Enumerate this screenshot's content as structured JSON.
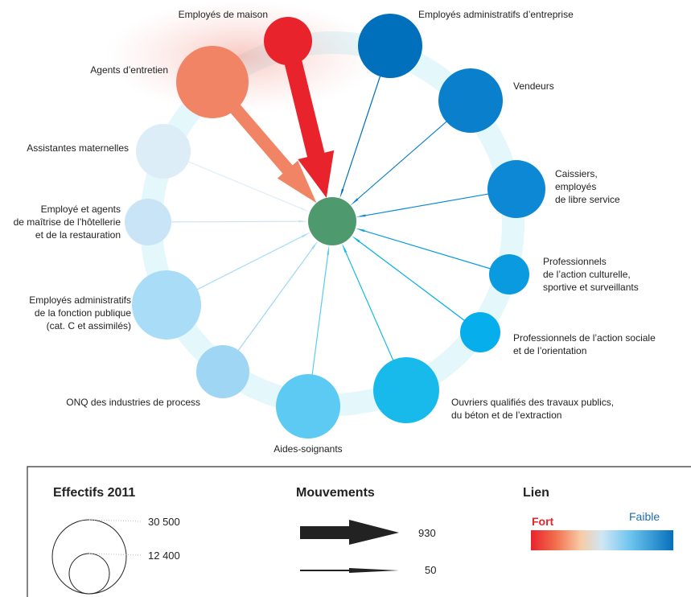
{
  "diagram": {
    "center_color": "#4e9a6e",
    "nodes": [
      {
        "id": "employes-maison",
        "lines": [
          "Employés de maison"
        ],
        "color": "#e8232b",
        "size": 0.45,
        "flow": 0.55
      },
      {
        "id": "employes-admin-entreprise",
        "lines": [
          "Employés administratifs d’entreprise"
        ],
        "color": "#0070bc",
        "size": 0.85,
        "flow": 0.02
      },
      {
        "id": "vendeurs",
        "lines": [
          "Vendeurs"
        ],
        "color": "#0a7fcc",
        "size": 0.9,
        "flow": 0.02
      },
      {
        "id": "caissiers",
        "lines": [
          "Caissiers,",
          "employés",
          "de libre  service"
        ],
        "color": "#0c88d4",
        "size": 0.65,
        "flow": 0.02
      },
      {
        "id": "pro-action-culturelle",
        "lines": [
          "Professionnels",
          "de l’action culturelle,",
          "sportive et surveillants"
        ],
        "color": "#0a9ae0",
        "size": 0.3,
        "flow": 0.02
      },
      {
        "id": "pro-action-sociale",
        "lines": [
          "Professionnels de l’action sociale",
          "et de l’orientation"
        ],
        "color": "#07aeec",
        "size": 0.3,
        "flow": 0.02
      },
      {
        "id": "ouvriers-tp",
        "lines": [
          "Ouvriers qualifiés des travaux publics,",
          "du béton et de l’extraction"
        ],
        "color": "#17baea",
        "size": 0.9,
        "flow": 0.03
      },
      {
        "id": "aides-soignants",
        "lines": [
          "Aides-soignants"
        ],
        "color": "#5ccaf2",
        "size": 0.8,
        "flow": 0.03
      },
      {
        "id": "onq-process",
        "lines": [
          "ONQ des industries de process"
        ],
        "color": "#9ed6f3",
        "size": 0.5,
        "flow": 0.02
      },
      {
        "id": "employes-fonction-publique",
        "lines": [
          "Employés administratifs",
          "de la fonction publique",
          "(cat. C et assimilés)"
        ],
        "color": "#a8dcf7",
        "size": 1.0,
        "flow": 0.02
      },
      {
        "id": "employe-hotellerie",
        "lines": [
          "Employé et agents",
          "de maîtrise de l’hôtellerie",
          "et de la restauration"
        ],
        "color": "#c8e4f6",
        "size": 0.35,
        "flow": 0.02
      },
      {
        "id": "assistantes-maternelles",
        "lines": [
          "Assistantes maternelles"
        ],
        "color": "#dcedf8",
        "size": 0.45,
        "flow": 0.02
      },
      {
        "id": "agents-entretien",
        "lines": [
          "Agents d’entretien"
        ],
        "color": "#f18465",
        "size": 1.0,
        "flow": 0.4
      }
    ]
  },
  "legend": {
    "effectifs": {
      "title": "Effectifs 2011",
      "values": [
        "30 500",
        "12 400"
      ]
    },
    "mouvements": {
      "title": "Mouvements",
      "values": [
        "930",
        "50"
      ]
    },
    "lien": {
      "title": "Lien",
      "fort": "Fort",
      "faible": "Faible"
    }
  }
}
